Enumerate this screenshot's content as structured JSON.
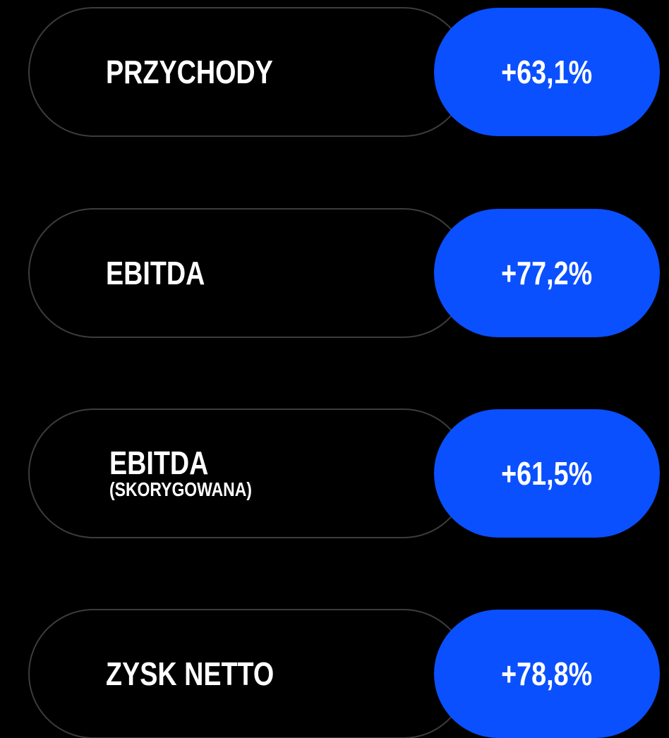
{
  "items": [
    {
      "label": "PRZYCHODY",
      "value": "+63,1%"
    },
    {
      "label": "EBITDA",
      "value": "+77,2%"
    },
    {
      "label": "EBITDA",
      "sublabel": "(SKORYGOWANA)",
      "value": "+61,5%"
    },
    {
      "label": "ZYSK NETTO",
      "value": "+78,8%"
    }
  ]
}
